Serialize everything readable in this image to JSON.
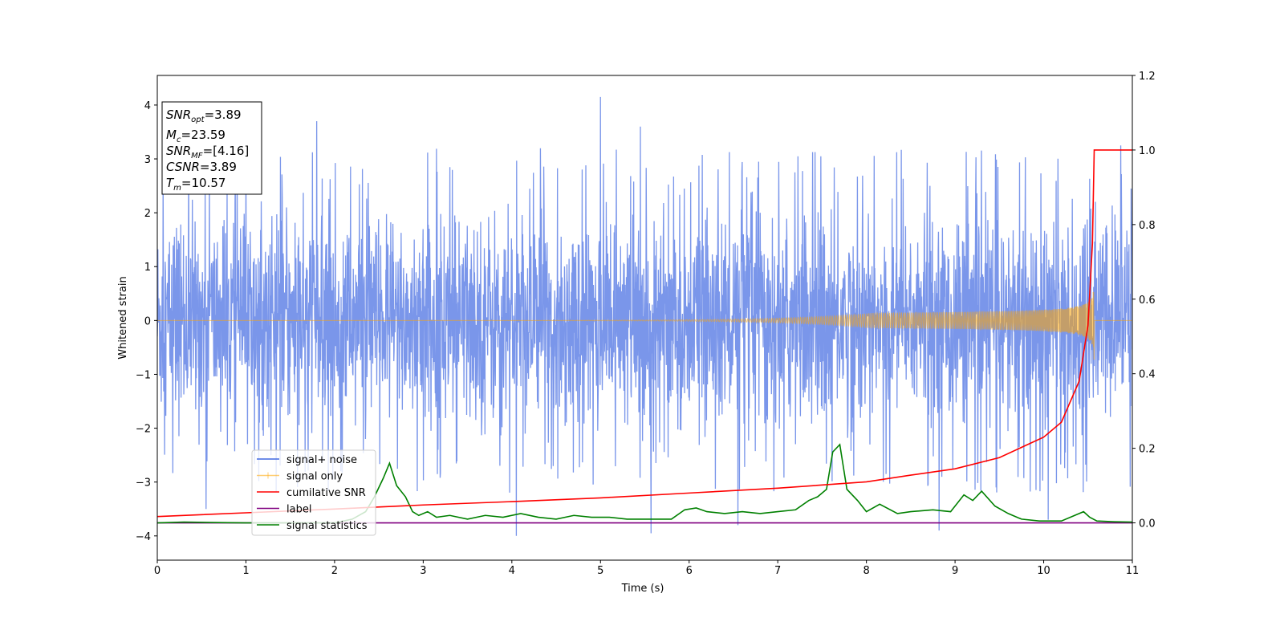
{
  "chart_data": {
    "type": "line",
    "xlabel": "Time (s)",
    "ylabel": "Whitened strain",
    "xlim": [
      0,
      11
    ],
    "ylim": [
      -4.45,
      4.55
    ],
    "y2lim": [
      -0.1,
      1.2
    ],
    "x_ticks": [
      0,
      1,
      2,
      3,
      4,
      5,
      6,
      7,
      8,
      9,
      10,
      11
    ],
    "x_tick_labels": [
      "0",
      "1",
      "2",
      "3",
      "4",
      "5",
      "6",
      "7",
      "8",
      "9",
      "10",
      "11"
    ],
    "y_ticks": [
      -4,
      -3,
      -2,
      -1,
      0,
      1,
      2,
      3,
      4
    ],
    "y_tick_labels": [
      "−4",
      "−3",
      "−2",
      "−1",
      "0",
      "1",
      "2",
      "3",
      "4"
    ],
    "y2_ticks": [
      0.0,
      0.2,
      0.4,
      0.6,
      0.8,
      1.0,
      1.2
    ],
    "y2_tick_labels": [
      "0.0",
      "0.2",
      "0.4",
      "0.6",
      "0.8",
      "1.0",
      "1.2"
    ],
    "grid": false,
    "legend_placement": "lower-left",
    "annotation": {
      "snr_opt": {
        "base": "SNR",
        "sub": "opt",
        "value": "=3.89"
      },
      "mc": {
        "base": "M",
        "sub": "c",
        "value": "=23.59"
      },
      "snr_mf": {
        "base": "SNR",
        "sub": "MF",
        "value": "=[4.16]"
      },
      "csnr": {
        "base": "CSNR",
        "value": "=3.89"
      },
      "tm": {
        "base": "T",
        "sub": "m",
        "value": "=10.57"
      }
    },
    "series": [
      {
        "name": "signal+ noise",
        "axis": "left",
        "color": "#4169e1",
        "description_of_values": "dense noise band, typical envelope ±2.3, spikes to ~±3.7",
        "envelope": {
          "typical_peak": 2.3,
          "max": 4.15,
          "min": -4.0
        },
        "spikes": [
          {
            "x": 5.0,
            "y": 4.15
          },
          {
            "x": 4.05,
            "y": -4.0
          },
          {
            "x": 5.57,
            "y": -3.95
          },
          {
            "x": 6.55,
            "y": -3.8
          },
          {
            "x": 8.82,
            "y": -3.9
          },
          {
            "x": 1.8,
            "y": 3.7
          },
          {
            "x": 5.45,
            "y": 3.6
          },
          {
            "x": 10.87,
            "y": 3.25
          },
          {
            "x": 0.55,
            "y": -3.5
          },
          {
            "x": 10.05,
            "y": -3.7
          }
        ]
      },
      {
        "name": "signal only",
        "axis": "left",
        "color": "#ffa500",
        "description_of_values": "chirp, amplitude ~0 until ~8.5 s, growing to ~0.75 at 10.55 s, ending ~10.57 s",
        "peak_amplitude": 0.75,
        "merger_time": 10.57
      },
      {
        "name": "cumilative SNR",
        "axis": "right",
        "color": "#ff0000",
        "x": [
          0,
          1,
          2,
          3,
          4,
          5,
          6,
          7,
          8,
          8.5,
          9,
          9.5,
          10,
          10.2,
          10.4,
          10.5,
          10.55,
          10.57,
          11
        ],
        "y": [
          0.017,
          0.027,
          0.037,
          0.048,
          0.057,
          0.067,
          0.08,
          0.093,
          0.11,
          0.128,
          0.145,
          0.175,
          0.23,
          0.27,
          0.38,
          0.53,
          0.75,
          1.0,
          1.0
        ]
      },
      {
        "name": "label",
        "axis": "right",
        "color": "#800080",
        "x": [
          0,
          11
        ],
        "y": [
          0.0,
          0.0
        ]
      },
      {
        "name": "signal statistics",
        "axis": "right",
        "color": "#008000",
        "x": [
          0,
          0.3,
          0.6,
          1.0,
          1.5,
          2.0,
          2.2,
          2.35,
          2.45,
          2.55,
          2.62,
          2.7,
          2.8,
          2.88,
          2.95,
          3.05,
          3.15,
          3.3,
          3.5,
          3.7,
          3.9,
          4.1,
          4.3,
          4.5,
          4.7,
          4.9,
          5.1,
          5.3,
          5.55,
          5.8,
          5.95,
          6.08,
          6.2,
          6.4,
          6.6,
          6.8,
          7.0,
          7.2,
          7.35,
          7.45,
          7.55,
          7.62,
          7.7,
          7.78,
          7.9,
          8.0,
          8.15,
          8.35,
          8.5,
          8.75,
          8.95,
          9.1,
          9.2,
          9.3,
          9.45,
          9.6,
          9.75,
          9.95,
          10.2,
          10.45,
          10.52,
          10.6,
          10.8,
          11.0
        ],
        "y": [
          0.0,
          0.002,
          0.001,
          0.0,
          0.0,
          0.0,
          0.01,
          0.03,
          0.07,
          0.12,
          0.16,
          0.1,
          0.07,
          0.03,
          0.02,
          0.03,
          0.015,
          0.02,
          0.01,
          0.02,
          0.015,
          0.025,
          0.015,
          0.01,
          0.02,
          0.015,
          0.015,
          0.01,
          0.01,
          0.01,
          0.035,
          0.04,
          0.03,
          0.025,
          0.03,
          0.025,
          0.03,
          0.035,
          0.06,
          0.07,
          0.09,
          0.19,
          0.21,
          0.09,
          0.06,
          0.03,
          0.05,
          0.025,
          0.03,
          0.035,
          0.03,
          0.075,
          0.06,
          0.085,
          0.045,
          0.025,
          0.01,
          0.005,
          0.005,
          0.03,
          0.015,
          0.005,
          0.003,
          0.002
        ]
      }
    ]
  }
}
